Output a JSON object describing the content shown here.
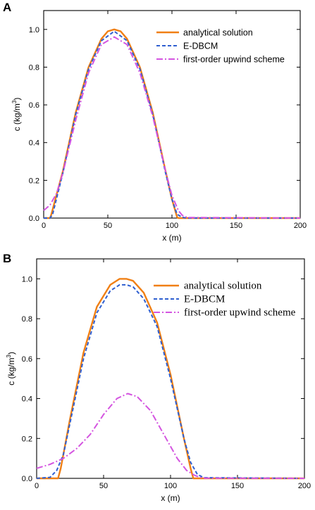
{
  "chart_data": [
    {
      "panel_label": "A",
      "type": "line",
      "xlabel": "x (m)",
      "ylabel": "c (kg/m³)",
      "ylabel_main": "c (kg/m",
      "ylabel_sup": "3",
      "ylabel_tail": ")",
      "xlim": [
        0,
        200
      ],
      "ylim": [
        0,
        1.1
      ],
      "xticks": [
        0,
        50,
        100,
        150,
        200
      ],
      "yticks": [
        0.0,
        0.2,
        0.4,
        0.6,
        0.8,
        1.0
      ],
      "ytick_labels": [
        "0.0",
        "0.2",
        "0.4",
        "0.6",
        "0.8",
        "1.0"
      ],
      "grid": false,
      "legend_position": "top-right",
      "series": [
        {
          "name": "analytical solution",
          "color": "#f07f14",
          "style": "solid",
          "x": [
            0,
            5,
            6,
            15,
            25,
            35,
            45,
            50,
            55,
            60,
            65,
            75,
            85,
            95,
            100,
            104,
            105,
            110,
            200
          ],
          "y": [
            0,
            0,
            0.02,
            0.25,
            0.56,
            0.8,
            0.95,
            0.99,
            1.0,
            0.99,
            0.95,
            0.8,
            0.56,
            0.25,
            0.1,
            0.005,
            0,
            0,
            0
          ]
        },
        {
          "name": "E-DBCM",
          "color": "#2f5fd0",
          "style": "dashed",
          "x": [
            0,
            5,
            7,
            15,
            25,
            35,
            45,
            55,
            65,
            75,
            85,
            95,
            100,
            104,
            108,
            112,
            200
          ],
          "y": [
            0,
            0,
            0.02,
            0.24,
            0.55,
            0.79,
            0.94,
            0.99,
            0.94,
            0.79,
            0.55,
            0.24,
            0.1,
            0.02,
            0.004,
            0,
            0
          ]
        },
        {
          "name": "first-order upwind scheme",
          "color": "#d455e0",
          "style": "dashdot",
          "x": [
            0,
            5,
            10,
            15,
            25,
            35,
            45,
            55,
            65,
            75,
            85,
            95,
            100,
            105,
            108,
            112,
            200
          ],
          "y": [
            0.04,
            0.07,
            0.13,
            0.24,
            0.52,
            0.77,
            0.92,
            0.96,
            0.92,
            0.77,
            0.54,
            0.25,
            0.12,
            0.04,
            0.015,
            0.003,
            0
          ]
        }
      ]
    },
    {
      "panel_label": "B",
      "type": "line",
      "xlabel": "x (m)",
      "ylabel": "c (kg/m³)",
      "ylabel_main": "c (kg/m",
      "ylabel_sup": "3",
      "ylabel_tail": ")",
      "xlim": [
        0,
        200
      ],
      "ylim": [
        0,
        1.1
      ],
      "xticks": [
        0,
        50,
        100,
        150,
        200
      ],
      "yticks": [
        0.0,
        0.2,
        0.4,
        0.6,
        0.8,
        1.0
      ],
      "ytick_labels": [
        "0.0",
        "0.2",
        "0.4",
        "0.6",
        "0.8",
        "1.0"
      ],
      "grid": false,
      "legend_position": "top-right",
      "series": [
        {
          "name": "analytical solution",
          "color": "#f07f14",
          "style": "solid",
          "x": [
            0,
            16,
            18,
            25,
            35,
            45,
            55,
            62,
            67,
            72,
            80,
            90,
            100,
            110,
            115,
            117,
            200
          ],
          "y": [
            0,
            0,
            0.05,
            0.3,
            0.63,
            0.86,
            0.97,
            1.0,
            1.0,
            0.99,
            0.93,
            0.78,
            0.52,
            0.2,
            0.05,
            0,
            0
          ]
        },
        {
          "name": "E-DBCM",
          "color": "#2f5fd0",
          "style": "dashed",
          "x": [
            0,
            10,
            15,
            20,
            25,
            35,
            45,
            55,
            62,
            67,
            72,
            80,
            90,
            100,
            110,
            115,
            120,
            125,
            200
          ],
          "y": [
            0,
            0.005,
            0.04,
            0.12,
            0.28,
            0.6,
            0.83,
            0.94,
            0.97,
            0.97,
            0.96,
            0.9,
            0.76,
            0.5,
            0.2,
            0.08,
            0.02,
            0.003,
            0
          ]
        },
        {
          "name": "first-order upwind scheme",
          "color": "#d455e0",
          "style": "dashdot",
          "x": [
            0,
            10,
            20,
            30,
            40,
            50,
            60,
            68,
            75,
            85,
            95,
            105,
            112,
            118,
            122,
            126,
            200
          ],
          "y": [
            0.05,
            0.07,
            0.1,
            0.15,
            0.22,
            0.32,
            0.4,
            0.425,
            0.41,
            0.34,
            0.22,
            0.1,
            0.04,
            0.015,
            0.005,
            0.001,
            0
          ]
        }
      ]
    }
  ]
}
